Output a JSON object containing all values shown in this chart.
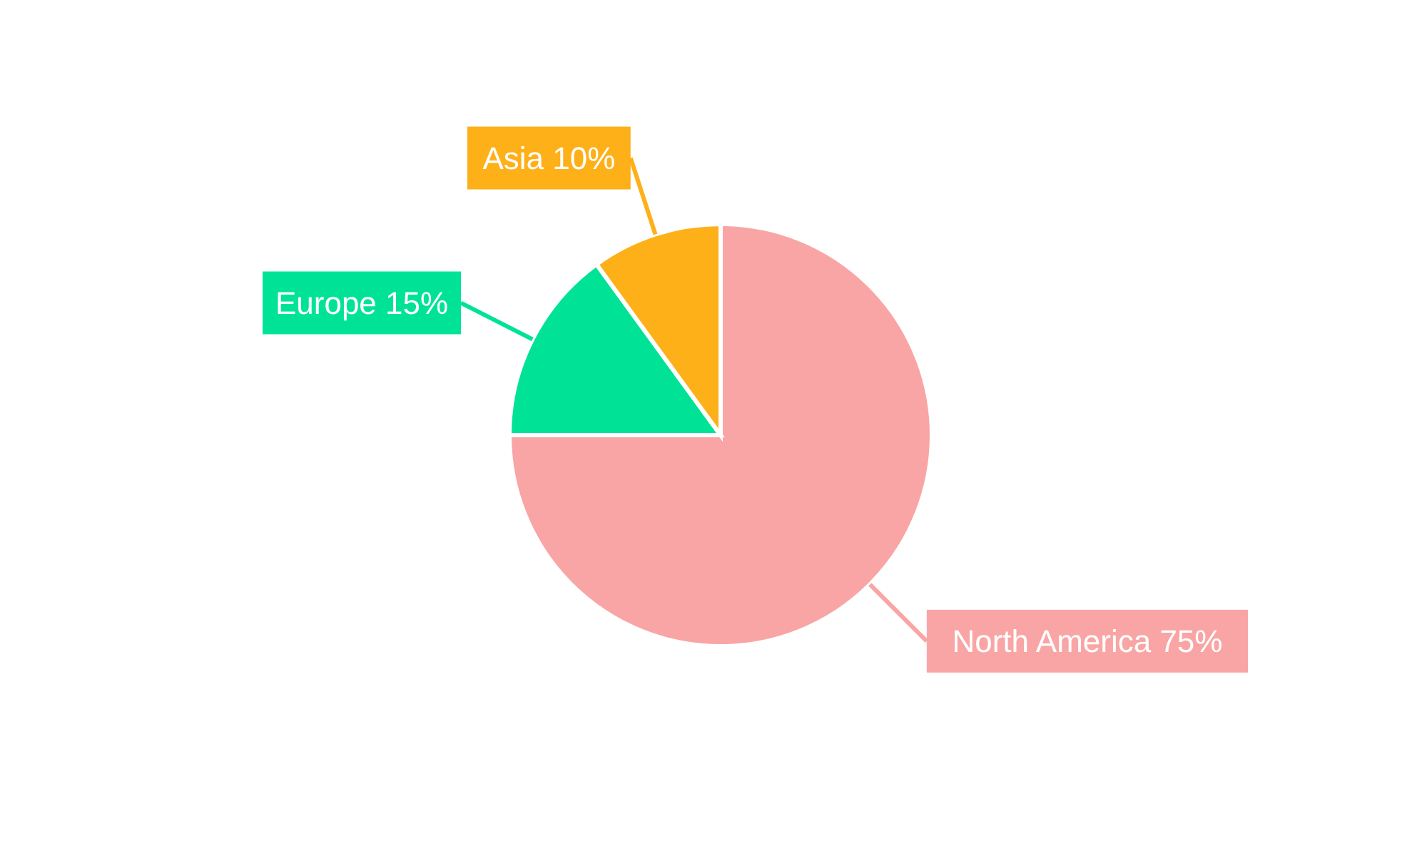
{
  "chart_data": {
    "type": "pie",
    "categories": [
      "North America",
      "Europe",
      "Asia"
    ],
    "values": [
      75,
      15,
      10
    ],
    "value_labels": [
      "75%",
      "15%",
      "10%"
    ],
    "colors": [
      "#f9a5a5",
      "#00e396",
      "#feb019"
    ],
    "legend": false
  }
}
